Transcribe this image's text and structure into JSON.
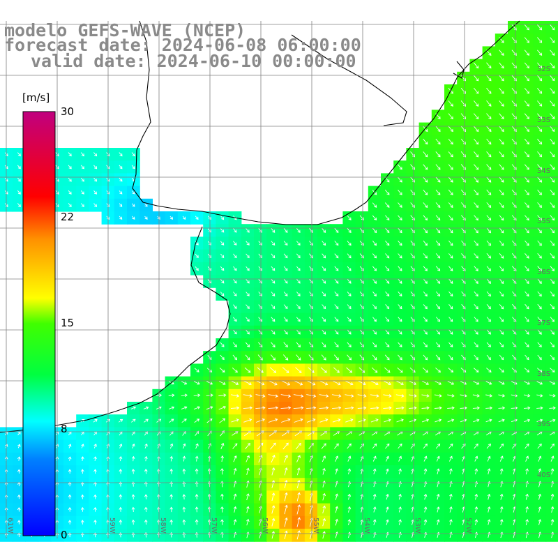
{
  "header": {
    "model": "modelo GEFS-WAVE (NCEP)",
    "forecast": "forecast date: 2024-06-08 06:00:00",
    "valid": "valid date: 2024-06-10 00:00:00"
  },
  "colorbar": {
    "unit": "[m/s]",
    "ticks": [
      "30",
      "22",
      "15",
      "8",
      "0"
    ],
    "tick_values": [
      30,
      22,
      15,
      8,
      0
    ],
    "range": [
      0,
      30
    ],
    "colors": [
      "#0000ff",
      "#00c8ff",
      "#00ffff",
      "#00ff00",
      "#ffff00",
      "#ffa000",
      "#ff0000",
      "#c00080"
    ]
  },
  "grid": {
    "lat_labels": [
      "32S",
      "33S",
      "34S",
      "35S",
      "36S",
      "37S",
      "38S",
      "39S",
      "40S"
    ],
    "lon_labels": [
      "61W",
      "59W",
      "58W",
      "57W",
      "56W",
      "55W",
      "54W",
      "53W",
      "52W"
    ]
  },
  "map": {
    "variable": "wind speed",
    "land_color": "#ffffff",
    "arrow_color": "#ffffff",
    "coastline_color": "#000000",
    "gridline_color": "#808080"
  }
}
